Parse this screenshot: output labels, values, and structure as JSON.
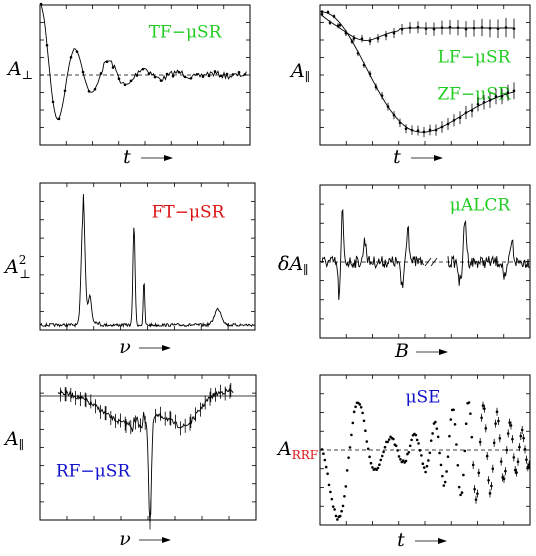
{
  "panels": [
    {
      "labels": [
        {
          "text": "TF−μSR",
          "color": "#22cc22"
        }
      ],
      "ylabel": {
        "main": "A",
        "sub": "⊥"
      },
      "xlabel": "t"
    },
    {
      "labels": [
        {
          "text": "LF−μSR",
          "color": "#22cc22"
        },
        {
          "text": "ZF−μSR",
          "color": "#22cc22"
        }
      ],
      "ylabel": {
        "main": "A",
        "sub": "∥"
      },
      "xlabel": "t"
    },
    {
      "labels": [
        {
          "text": "FT−μSR",
          "color": "#dd1111"
        }
      ],
      "ylabel": {
        "main": "A",
        "sub": "⊥",
        "sup": "2"
      },
      "xlabel": "ν"
    },
    {
      "labels": [
        {
          "text": "μALCR",
          "color": "#22cc22"
        }
      ],
      "ylabel": {
        "main": "δA",
        "sub": "∥"
      },
      "xlabel": "B"
    },
    {
      "labels": [
        {
          "text": "RF−μSR",
          "color": "#1111cc"
        }
      ],
      "ylabel": {
        "main": "A",
        "sub": "∥"
      },
      "xlabel": "ν"
    },
    {
      "labels": [
        {
          "text": "μSE",
          "color": "#1111cc"
        }
      ],
      "ylabel": {
        "main": "A",
        "sub": "RRF",
        "subcolor": "#dd1111"
      },
      "xlabel": "t"
    }
  ]
}
